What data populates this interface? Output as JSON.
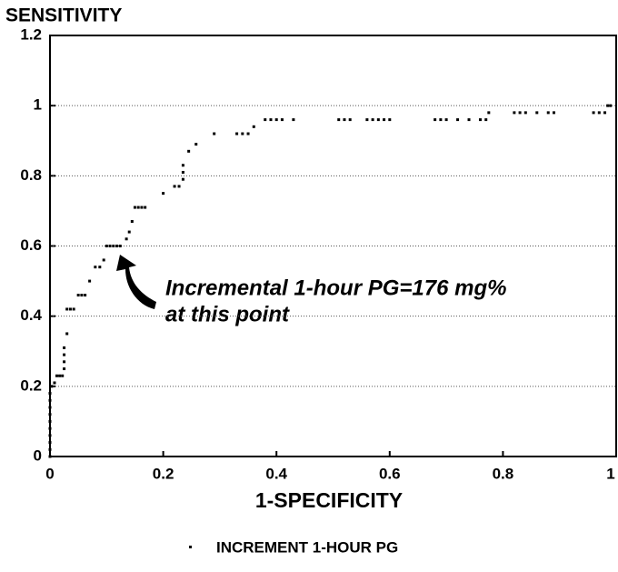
{
  "chart_data": {
    "type": "scatter",
    "title": "SENSITIVITY",
    "x_label": "1-SPECIFICITY",
    "annotations": [
      "Incremental 1-hour PG=176 mg%",
      "at this point"
    ],
    "x": [
      0,
      0,
      0,
      0,
      0,
      0,
      0,
      0,
      0,
      0,
      0.003,
      0.008,
      0.012,
      0.017,
      0.022,
      0.025,
      0.025,
      0.025,
      0.025,
      0.03,
      0.03,
      0.036,
      0.042,
      0.05,
      0.056,
      0.062,
      0.07,
      0.08,
      0.088,
      0.095,
      0.1,
      0.106,
      0.112,
      0.118,
      0.124,
      0.135,
      0.14,
      0.145,
      0.15,
      0.156,
      0.162,
      0.168,
      0.2,
      0.22,
      0.228,
      0.235,
      0.235,
      0.235,
      0.245,
      0.258,
      0.29,
      0.33,
      0.34,
      0.35,
      0.36,
      0.38,
      0.39,
      0.4,
      0.41,
      0.43,
      0.51,
      0.52,
      0.53,
      0.56,
      0.57,
      0.58,
      0.59,
      0.6,
      0.68,
      0.69,
      0.7,
      0.72,
      0.74,
      0.76,
      0.77,
      0.775,
      0.82,
      0.83,
      0.84,
      0.86,
      0.88,
      0.89,
      0.96,
      0.97,
      0.98,
      0.985,
      0.99
    ],
    "series": [
      {
        "name": "INCREMENT 1-HOUR PG",
        "color": "#000000",
        "values": [
          0,
          0.02,
          0.04,
          0.06,
          0.08,
          0.1,
          0.12,
          0.14,
          0.16,
          0.18,
          0.2,
          0.21,
          0.23,
          0.23,
          0.23,
          0.25,
          0.27,
          0.29,
          0.31,
          0.35,
          0.42,
          0.42,
          0.42,
          0.46,
          0.46,
          0.46,
          0.5,
          0.54,
          0.54,
          0.56,
          0.6,
          0.6,
          0.6,
          0.6,
          0.6,
          0.62,
          0.64,
          0.67,
          0.71,
          0.71,
          0.71,
          0.71,
          0.75,
          0.77,
          0.77,
          0.79,
          0.81,
          0.83,
          0.87,
          0.89,
          0.92,
          0.92,
          0.92,
          0.92,
          0.94,
          0.96,
          0.96,
          0.96,
          0.96,
          0.96,
          0.96,
          0.96,
          0.96,
          0.96,
          0.96,
          0.96,
          0.96,
          0.96,
          0.96,
          0.96,
          0.96,
          0.96,
          0.96,
          0.96,
          0.96,
          0.98,
          0.98,
          0.98,
          0.98,
          0.98,
          0.98,
          0.98,
          0.98,
          0.98,
          0.98,
          1,
          1
        ]
      }
    ],
    "xlim": [
      0,
      1
    ],
    "ylim": [
      0,
      1.2
    ],
    "xticks": [
      0,
      0.2,
      0.4,
      0.6,
      0.8,
      1
    ],
    "yticks": [
      0,
      0.2,
      0.4,
      0.6,
      0.8,
      1,
      1.2
    ],
    "grid": true,
    "legend": "bottom"
  }
}
